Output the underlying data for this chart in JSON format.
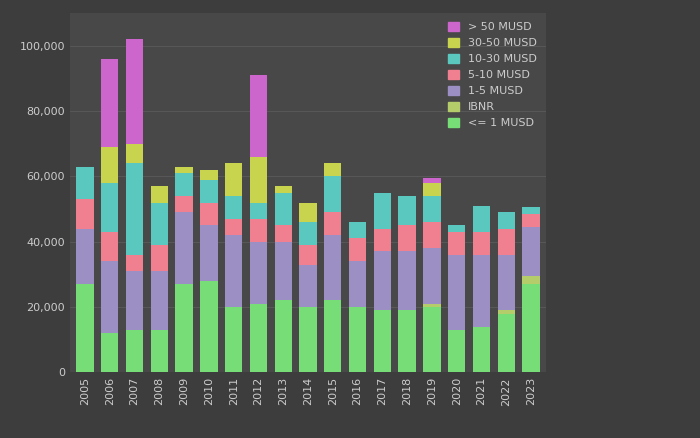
{
  "years": [
    2005,
    2006,
    2007,
    2008,
    2009,
    2010,
    2011,
    2012,
    2013,
    2014,
    2015,
    2016,
    2017,
    2018,
    2019,
    2020,
    2021,
    2022,
    2023
  ],
  "segments": {
    "<= 1 MUSD": [
      27000,
      12000,
      13000,
      13000,
      27000,
      28000,
      20000,
      21000,
      22000,
      20000,
      22000,
      20000,
      19000,
      19000,
      20000,
      13000,
      14000,
      18000,
      27000
    ],
    "IBNR": [
      0,
      0,
      0,
      0,
      0,
      0,
      0,
      0,
      0,
      0,
      0,
      0,
      0,
      0,
      1000,
      0,
      0,
      1000,
      2500
    ],
    "1-5 MUSD": [
      17000,
      22000,
      18000,
      18000,
      22000,
      17000,
      22000,
      19000,
      18000,
      13000,
      20000,
      14000,
      18000,
      18000,
      17000,
      23000,
      22000,
      17000,
      15000
    ],
    "5-10 MUSD": [
      9000,
      9000,
      5000,
      8000,
      5000,
      7000,
      5000,
      7000,
      5000,
      6000,
      7000,
      7000,
      7000,
      8000,
      8000,
      7000,
      7000,
      8000,
      4000
    ],
    "10-30 MUSD": [
      10000,
      15000,
      28000,
      13000,
      7000,
      7000,
      7000,
      5000,
      10000,
      7000,
      11000,
      5000,
      11000,
      9000,
      8000,
      2000,
      8000,
      5000,
      2000
    ],
    "30-50 MUSD": [
      0,
      11000,
      6000,
      5000,
      2000,
      3000,
      10000,
      14000,
      2000,
      6000,
      4000,
      0,
      0,
      0,
      4000,
      0,
      0,
      0,
      0
    ],
    "> 50 MUSD": [
      0,
      27000,
      32000,
      0,
      0,
      0,
      0,
      25000,
      0,
      0,
      0,
      0,
      0,
      0,
      1500,
      0,
      0,
      0,
      0
    ]
  },
  "colors": {
    "<= 1 MUSD": "#77dd77",
    "IBNR": "#b5cc6a",
    "1-5 MUSD": "#9b8fc4",
    "5-10 MUSD": "#f08090",
    "10-30 MUSD": "#5bc8c0",
    "30-50 MUSD": "#c8d44e",
    "> 50 MUSD": "#cc66cc"
  },
  "ylim": [
    0,
    110000
  ],
  "yticks": [
    0,
    20000,
    40000,
    60000,
    80000,
    100000
  ],
  "background_color": "#3d3d3d",
  "plot_bg_color": "#484848",
  "text_color": "#cccccc",
  "grid_color": "#5a5a5a"
}
